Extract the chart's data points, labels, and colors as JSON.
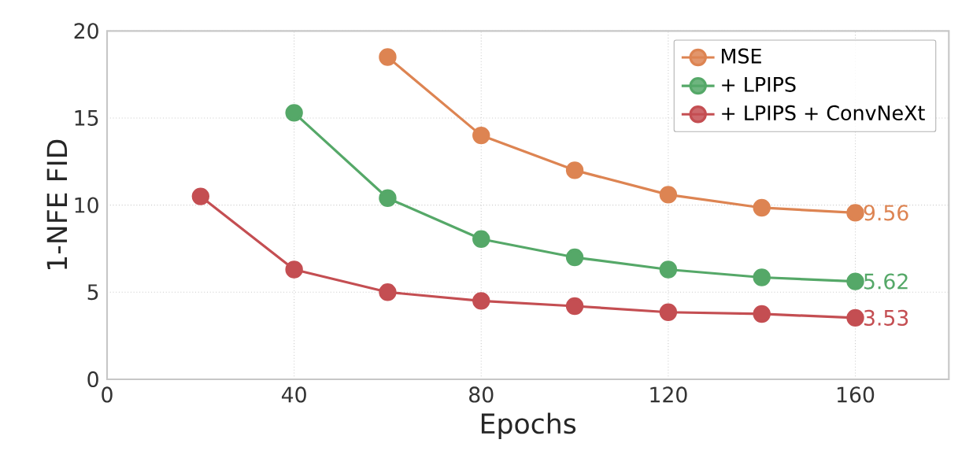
{
  "chart_data": {
    "type": "line",
    "xlabel": "Epochs",
    "ylabel": "1-NFE  FID",
    "xlim": [
      0,
      180
    ],
    "ylim": [
      0,
      20
    ],
    "xticks": [
      0,
      40,
      80,
      120,
      160
    ],
    "yticks": [
      0,
      5,
      10,
      15,
      20
    ],
    "grid": true,
    "legend": "top right",
    "marker": "circle",
    "line_style": "solid",
    "series": [
      {
        "name": "MSE",
        "color": "#dd8452",
        "x": [
          60,
          80,
          100,
          120,
          140,
          160
        ],
        "values": [
          18.5,
          14.0,
          12.0,
          10.6,
          9.85,
          9.56
        ],
        "value_labels": [
          null,
          null,
          null,
          null,
          null,
          "9.56"
        ]
      },
      {
        "name": "+ LPIPS",
        "color": "#55a868",
        "x": [
          40,
          60,
          80,
          100,
          120,
          140,
          160
        ],
        "values": [
          15.3,
          10.4,
          8.05,
          7.0,
          6.3,
          5.85,
          5.62
        ],
        "value_labels": [
          null,
          null,
          null,
          null,
          null,
          null,
          "5.62"
        ]
      },
      {
        "name": "+ LPIPS + ConvNeXt",
        "color": "#c44e52",
        "x": [
          20,
          40,
          60,
          80,
          100,
          120,
          140,
          160
        ],
        "values": [
          10.5,
          6.3,
          5.0,
          4.5,
          4.2,
          3.85,
          3.75,
          3.53
        ],
        "value_labels": [
          null,
          null,
          null,
          null,
          null,
          null,
          null,
          "3.53"
        ]
      }
    ]
  }
}
